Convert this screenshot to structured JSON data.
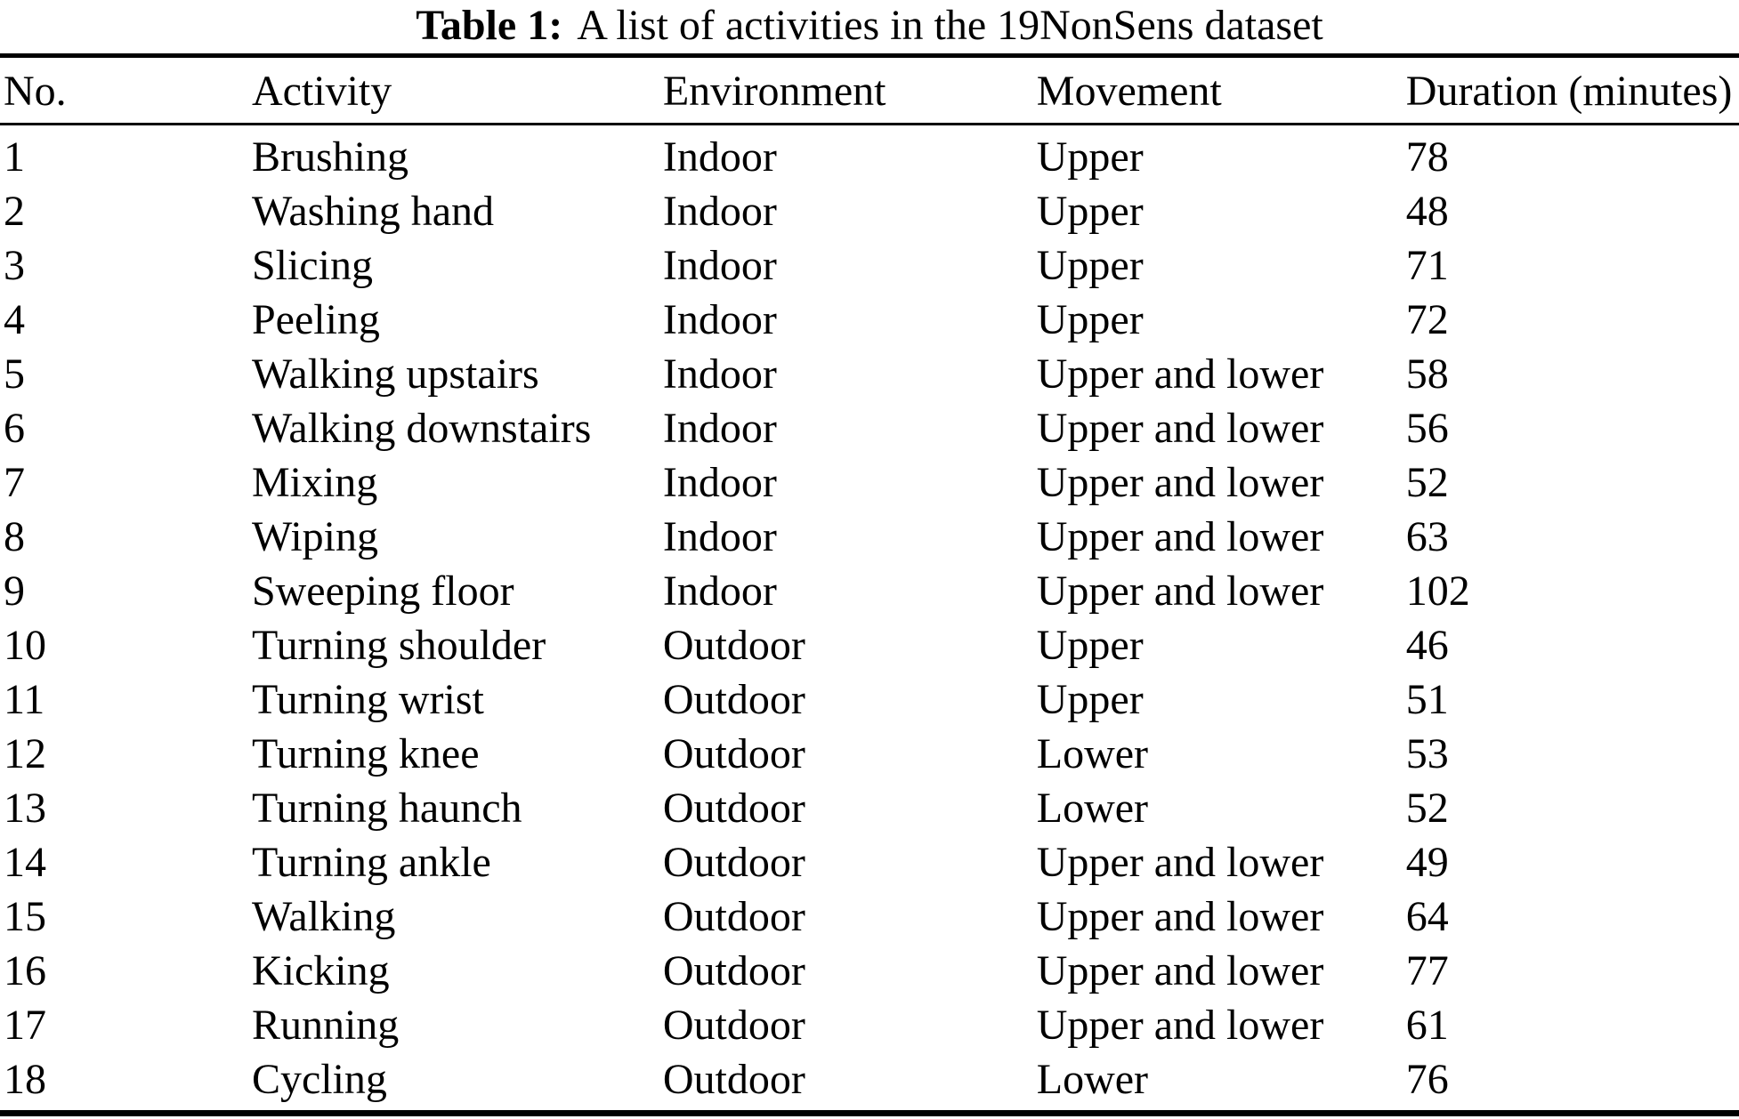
{
  "caption": {
    "label": "Table 1:",
    "text": "A list of activities in the 19NonSens dataset"
  },
  "table": {
    "columns": [
      "No.",
      "Activity",
      "Environment",
      "Movement",
      "Duration (minutes)"
    ],
    "rows": [
      {
        "no": "1",
        "activity": "Brushing",
        "environment": "Indoor",
        "movement": "Upper",
        "duration": "78"
      },
      {
        "no": "2",
        "activity": "Washing hand",
        "environment": "Indoor",
        "movement": "Upper",
        "duration": "48"
      },
      {
        "no": "3",
        "activity": "Slicing",
        "environment": "Indoor",
        "movement": "Upper",
        "duration": "71"
      },
      {
        "no": "4",
        "activity": "Peeling",
        "environment": "Indoor",
        "movement": "Upper",
        "duration": "72"
      },
      {
        "no": "5",
        "activity": "Walking upstairs",
        "environment": "Indoor",
        "movement": "Upper and lower",
        "duration": "58"
      },
      {
        "no": "6",
        "activity": "Walking downstairs",
        "environment": "Indoor",
        "movement": "Upper and lower",
        "duration": "56"
      },
      {
        "no": "7",
        "activity": "Mixing",
        "environment": "Indoor",
        "movement": "Upper and lower",
        "duration": "52"
      },
      {
        "no": "8",
        "activity": "Wiping",
        "environment": "Indoor",
        "movement": "Upper and lower",
        "duration": "63"
      },
      {
        "no": "9",
        "activity": "Sweeping floor",
        "environment": "Indoor",
        "movement": "Upper and lower",
        "duration": "102"
      },
      {
        "no": "10",
        "activity": "Turning shoulder",
        "environment": "Outdoor",
        "movement": "Upper",
        "duration": "46"
      },
      {
        "no": "11",
        "activity": "Turning wrist",
        "environment": "Outdoor",
        "movement": "Upper",
        "duration": "51"
      },
      {
        "no": "12",
        "activity": "Turning knee",
        "environment": "Outdoor",
        "movement": "Lower",
        "duration": "53"
      },
      {
        "no": "13",
        "activity": "Turning haunch",
        "environment": "Outdoor",
        "movement": "Lower",
        "duration": "52"
      },
      {
        "no": "14",
        "activity": "Turning ankle",
        "environment": "Outdoor",
        "movement": "Upper and lower",
        "duration": "49"
      },
      {
        "no": "15",
        "activity": "Walking",
        "environment": "Outdoor",
        "movement": "Upper and lower",
        "duration": "64"
      },
      {
        "no": "16",
        "activity": "Kicking",
        "environment": "Outdoor",
        "movement": "Upper and lower",
        "duration": "77"
      },
      {
        "no": "17",
        "activity": "Running",
        "environment": "Outdoor",
        "movement": "Upper and lower",
        "duration": "61"
      },
      {
        "no": "18",
        "activity": "Cycling",
        "environment": "Outdoor",
        "movement": "Lower",
        "duration": "76"
      }
    ]
  },
  "colors": {
    "text": "#000000",
    "background": "#ffffff",
    "rule": "#000000"
  }
}
